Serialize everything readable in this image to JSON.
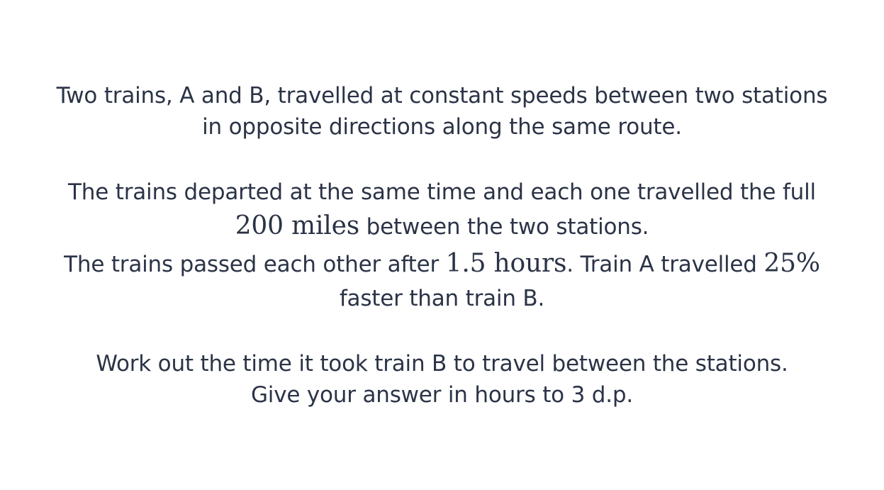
{
  "question": {
    "intro_line1": "Two trains, A and B, travelled at constant speeds between two stations",
    "intro_line2": "in opposite directions along the same route.",
    "p2_line1": "The trains departed at the same time and each one travelled the full",
    "distance_value": "200 miles",
    "p2_line2_rest": " between the two stations.",
    "p3_start": "The trains passed each other after ",
    "time_value": "1.5 hours",
    "p3_mid": ". Train A travelled ",
    "percent_value": "25%",
    "p3_line2": "faster than train B.",
    "task_line1": "Work out the time it took train B to travel between the stations.",
    "task_line2": "Give your answer in hours to 3 d.p."
  }
}
